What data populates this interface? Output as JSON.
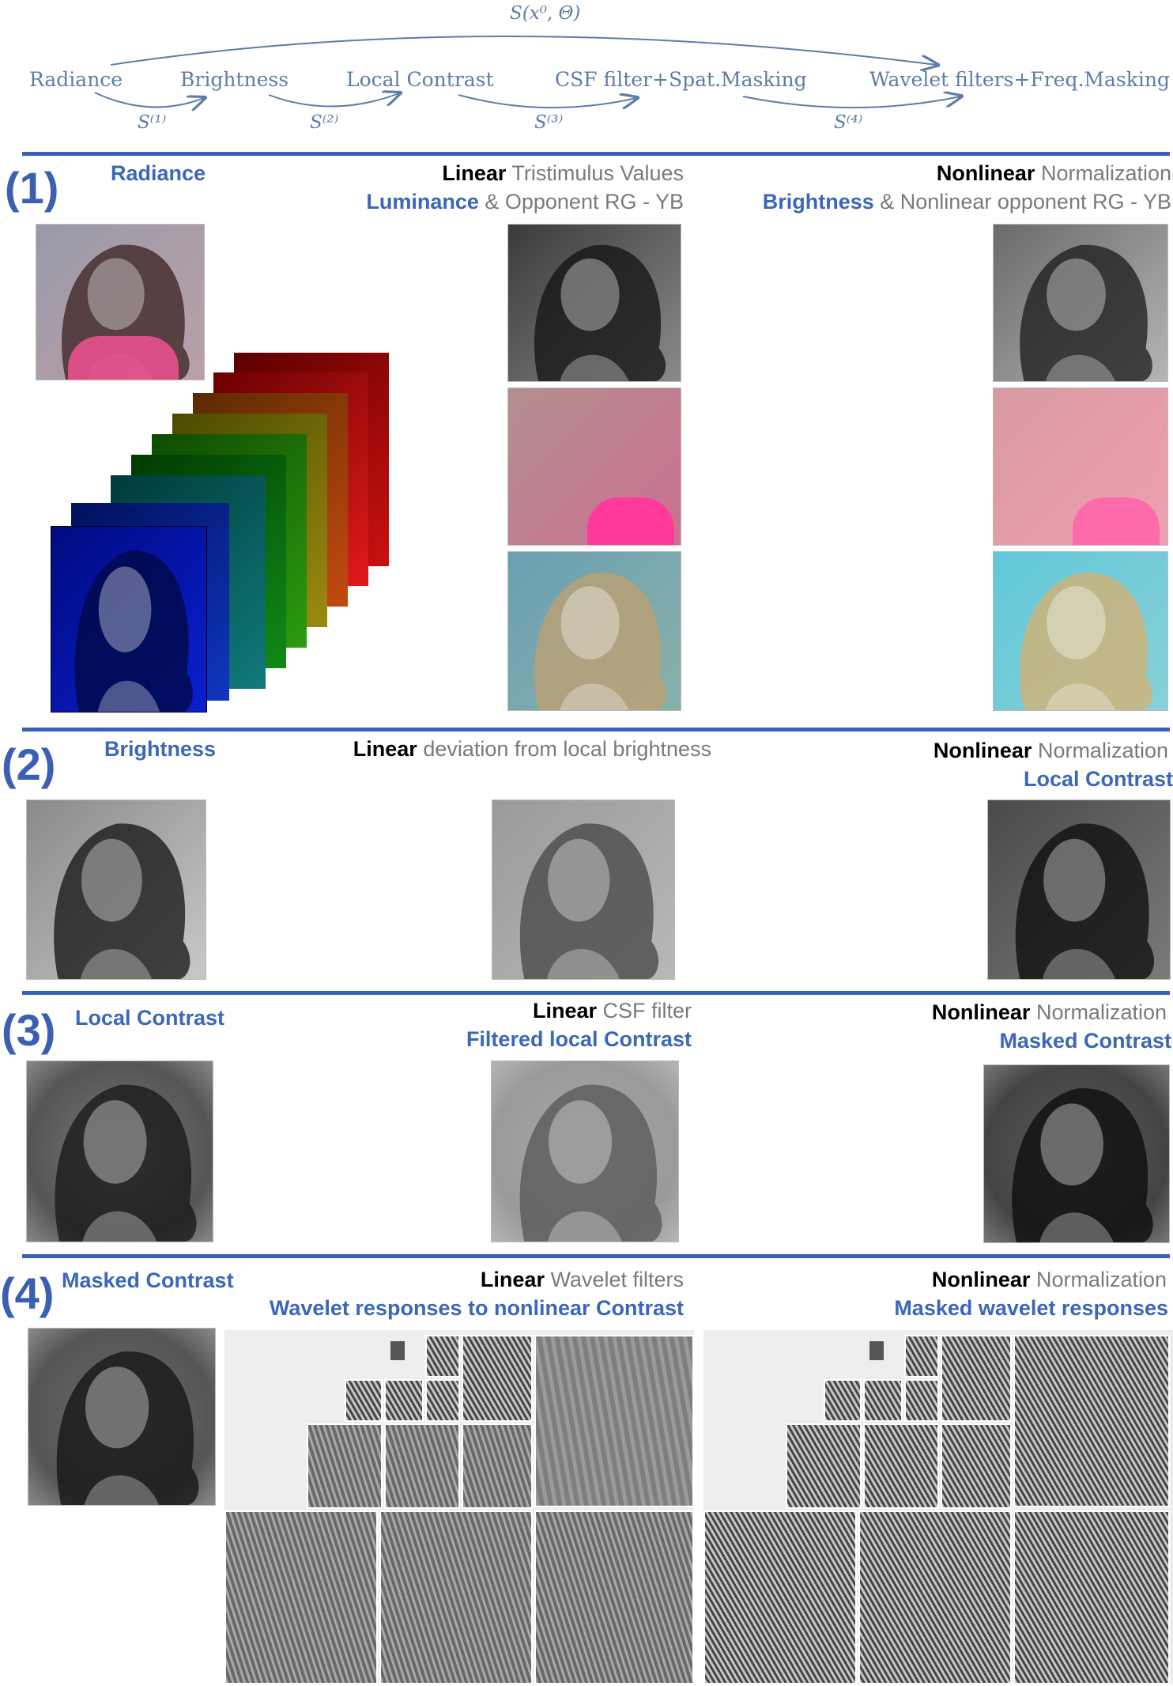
{
  "flow": {
    "global_op": "S(x⁰, Θ)",
    "stages": [
      "Radiance",
      "Brightness",
      "Local Contrast",
      "CSF filter+Spat.Masking",
      "Wavelet filters+Freq.Masking"
    ],
    "ops": [
      "S⁽¹⁾",
      "S⁽²⁾",
      "S⁽³⁾",
      "S⁽⁴⁾"
    ]
  },
  "sections": [
    {
      "num": "(1)",
      "left_title": "Radiance",
      "mid": {
        "bold": "Linear",
        "rest": " Tristimulus Values",
        "l2_blue": "Luminance",
        "l2_rest": " & Opponent RG - YB"
      },
      "right": {
        "bold": "Nonlinear",
        "rest": " Normalization",
        "l2_blue": "Brightness",
        "l2_rest": " & Nonlinear opponent RG - YB"
      }
    },
    {
      "num": "(2)",
      "left_title": "Brightness",
      "mid": {
        "bold": "Linear",
        "rest": " deviation from local brightness"
      },
      "right": {
        "bold": "Nonlinear",
        "rest": " Normalization",
        "l2_blue": "Local Contrast"
      }
    },
    {
      "num": "(3)",
      "left_title": "Local Contrast",
      "mid": {
        "bold": "Linear",
        "rest": " CSF filter",
        "l2_blue": "Filtered local Contrast"
      },
      "right": {
        "bold": "Nonlinear",
        "rest": " Normalization",
        "l2_blue": "Masked Contrast"
      }
    },
    {
      "num": "(4)",
      "left_title": "Masked Contrast",
      "mid": {
        "bold": "Linear",
        "rest": " Wavelet filters",
        "l2_blue": "Wavelet responses to nonlinear Contrast"
      },
      "right": {
        "bold": "Nonlinear",
        "rest": " Normalization",
        "l2_blue": "Masked wavelet responses"
      }
    }
  ],
  "colors": {
    "accent": "#3b5fb3",
    "label_blue": "#3b67b8",
    "flow_text": "#5d7da6"
  }
}
